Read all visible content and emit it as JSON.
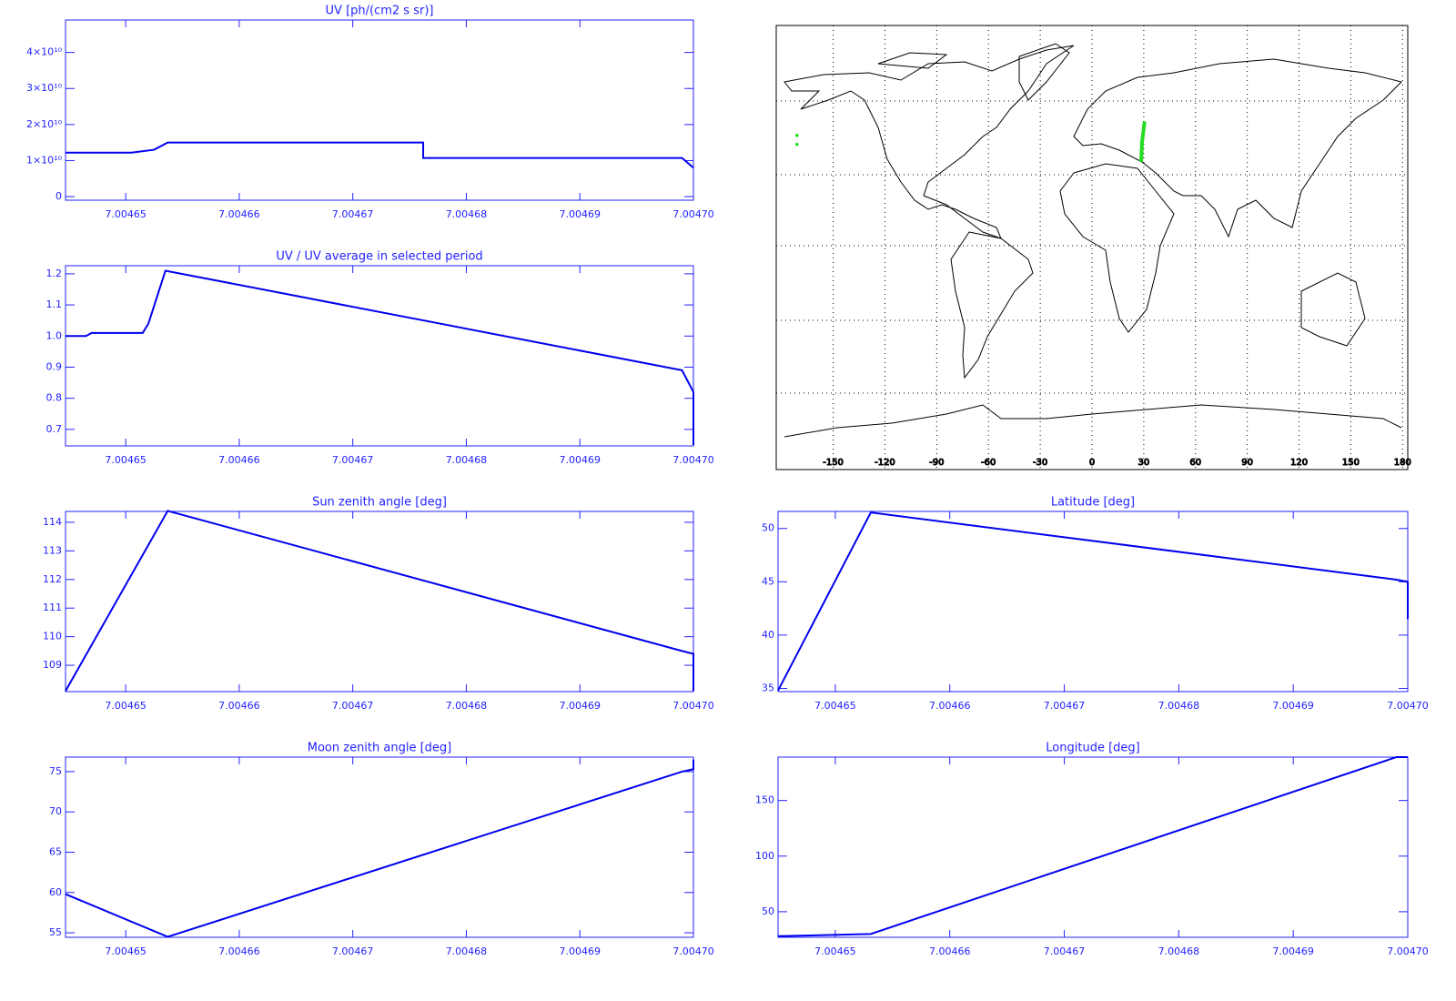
{
  "chart_data": [
    {
      "type": "line",
      "title": "UV [ph/(cm2 s sr)]",
      "color": "#0000ee",
      "x": [
        7.0046447,
        7.0046505,
        7.0046525,
        7.0046537,
        7.0046762,
        7.0046762,
        7.004699,
        7.0047
      ],
      "values": [
        12200000000,
        12200000000,
        13000000000,
        15000000000,
        15000000000,
        10700000000,
        10700000000,
        8000000000
      ],
      "xlim": [
        7.0046447,
        7.0047
      ],
      "ylim": [
        -1000000000,
        49000000000
      ],
      "xticks": [
        7.00465,
        7.00466,
        7.00467,
        7.00468,
        7.00469,
        {
          "value": 7.0047,
          "label": "7.00470"
        }
      ],
      "yticks": [
        0,
        {
          "value": 10000000000,
          "label": "1×10¹⁰"
        },
        {
          "value": 20000000000,
          "label": "2×10¹⁰"
        },
        {
          "value": 30000000000,
          "label": "3×10¹⁰"
        },
        {
          "value": 40000000000,
          "label": "4×10¹⁰"
        }
      ]
    },
    {
      "type": "line",
      "title": "UV / UV average in selected period",
      "color": "#0000ee",
      "x": [
        7.0046447,
        7.0046465,
        7.004647,
        7.0046515,
        7.004652,
        7.0046535,
        7.004699,
        7.0047,
        7.0047
      ],
      "values": [
        1.0,
        1.0,
        1.01,
        1.01,
        1.04,
        1.21,
        0.89,
        0.82,
        0.65
      ],
      "xlim": [
        7.0046447,
        7.0047
      ],
      "ylim": [
        0.647,
        1.226
      ],
      "xticks": [
        7.00465,
        7.00466,
        7.00467,
        7.00468,
        7.00469,
        {
          "value": 7.0047,
          "label": "7.00470"
        }
      ],
      "yticks": [
        0.7,
        0.8,
        0.9,
        {
          "value": 1,
          "label": "1.0"
        },
        1.1,
        1.2
      ]
    },
    {
      "type": "map",
      "xlim": [
        -183,
        183
      ],
      "ylim": [
        -92,
        91
      ],
      "xticks": [
        -150,
        -120,
        -90,
        -60,
        -30,
        0,
        30,
        60,
        90,
        120,
        150,
        180
      ],
      "series": [
        {
          "kind": "line",
          "color": "#22dd22",
          "x": [
            28.5,
            29,
            30.5
          ],
          "values": [
            34.8,
            43,
            51.5
          ]
        },
        {
          "kind": "points",
          "color": "#22dd22",
          "x": [
            -171,
            -171
          ],
          "values": [
            45.7,
            42
          ]
        }
      ]
    },
    {
      "type": "line",
      "title": "Sun zenith angle [deg]",
      "color": "#0000ee",
      "x": [
        7.0046447,
        7.0046537,
        7.004699,
        7.0047,
        7.0047
      ],
      "values": [
        108.1,
        114.4,
        109.5,
        109.4,
        108.1
      ],
      "xlim": [
        7.0046447,
        7.0047
      ],
      "ylim": [
        108.08,
        114.38
      ],
      "xticks": [
        7.00465,
        7.00466,
        7.00467,
        7.00468,
        7.00469,
        {
          "value": 7.0047,
          "label": "7.00470"
        }
      ],
      "yticks": [
        109,
        110,
        111,
        112,
        113,
        114
      ]
    },
    {
      "type": "line",
      "title": "Latitude [deg]",
      "color": "#0000ee",
      "x": [
        7.004645,
        7.0046531,
        7.004699,
        7.0047,
        7.0047
      ],
      "values": [
        34.8,
        51.5,
        45.2,
        45,
        41.5
      ],
      "xlim": [
        7.004645,
        7.0047
      ],
      "ylim": [
        34.7,
        51.6
      ],
      "xticks": [
        7.00465,
        7.00466,
        7.00467,
        7.00468,
        7.00469,
        {
          "value": 7.0047,
          "label": "7.00470"
        }
      ],
      "yticks": [
        35,
        40,
        45,
        50
      ]
    },
    {
      "type": "line",
      "title": "Moon zenith angle [deg]",
      "color": "#0000ee",
      "x": [
        7.0046447,
        7.0046537,
        7.004699,
        7.0047,
        7.0047
      ],
      "values": [
        59.8,
        54.5,
        75,
        75.3,
        76.5
      ],
      "xlim": [
        7.0046447,
        7.0047
      ],
      "ylim": [
        54.44,
        76.8
      ],
      "xticks": [
        7.00465,
        7.00466,
        7.00467,
        7.00468,
        7.00469,
        {
          "value": 7.0047,
          "label": "7.00470"
        }
      ],
      "yticks": [
        55,
        60,
        65,
        70,
        75
      ]
    },
    {
      "type": "line",
      "title": "Longitude [deg]",
      "color": "#0000ee",
      "x": [
        7.004645,
        7.0046531,
        7.004699,
        7.0047
      ],
      "values": [
        28,
        30,
        189,
        189
      ],
      "xlim": [
        7.004645,
        7.0047
      ],
      "ylim": [
        27,
        189
      ],
      "xticks": [
        7.00465,
        7.00466,
        7.00467,
        7.00468,
        7.00469,
        {
          "value": 7.0047,
          "label": "7.00470"
        }
      ],
      "yticks": [
        50,
        100,
        150
      ]
    }
  ]
}
